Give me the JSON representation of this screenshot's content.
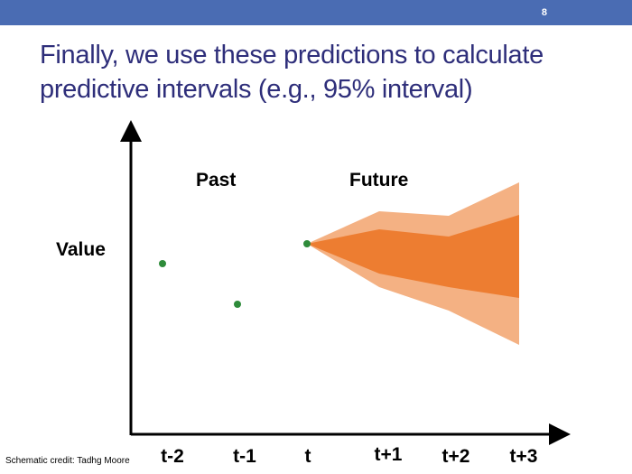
{
  "slide": {
    "number": "8",
    "title_lines": [
      "Finally, we use these predictions to calculate",
      "predictive intervals (e.g., 95% interval)"
    ],
    "credit": "Schematic credit: Tadhg Moore"
  },
  "diagram": {
    "y_label": "Value",
    "region_labels": {
      "past": "Past",
      "future": "Future"
    },
    "x_ticks": [
      "t-2",
      "t-1",
      "t",
      "t+1",
      "t+2",
      "t+3"
    ],
    "colors": {
      "bar": "#4a6cb3",
      "title": "#2e2e7a",
      "point": "#2e8b3a",
      "outer_interval": "#f4b183",
      "inner_interval": "#ed7d31",
      "axis": "#000000"
    }
  }
}
